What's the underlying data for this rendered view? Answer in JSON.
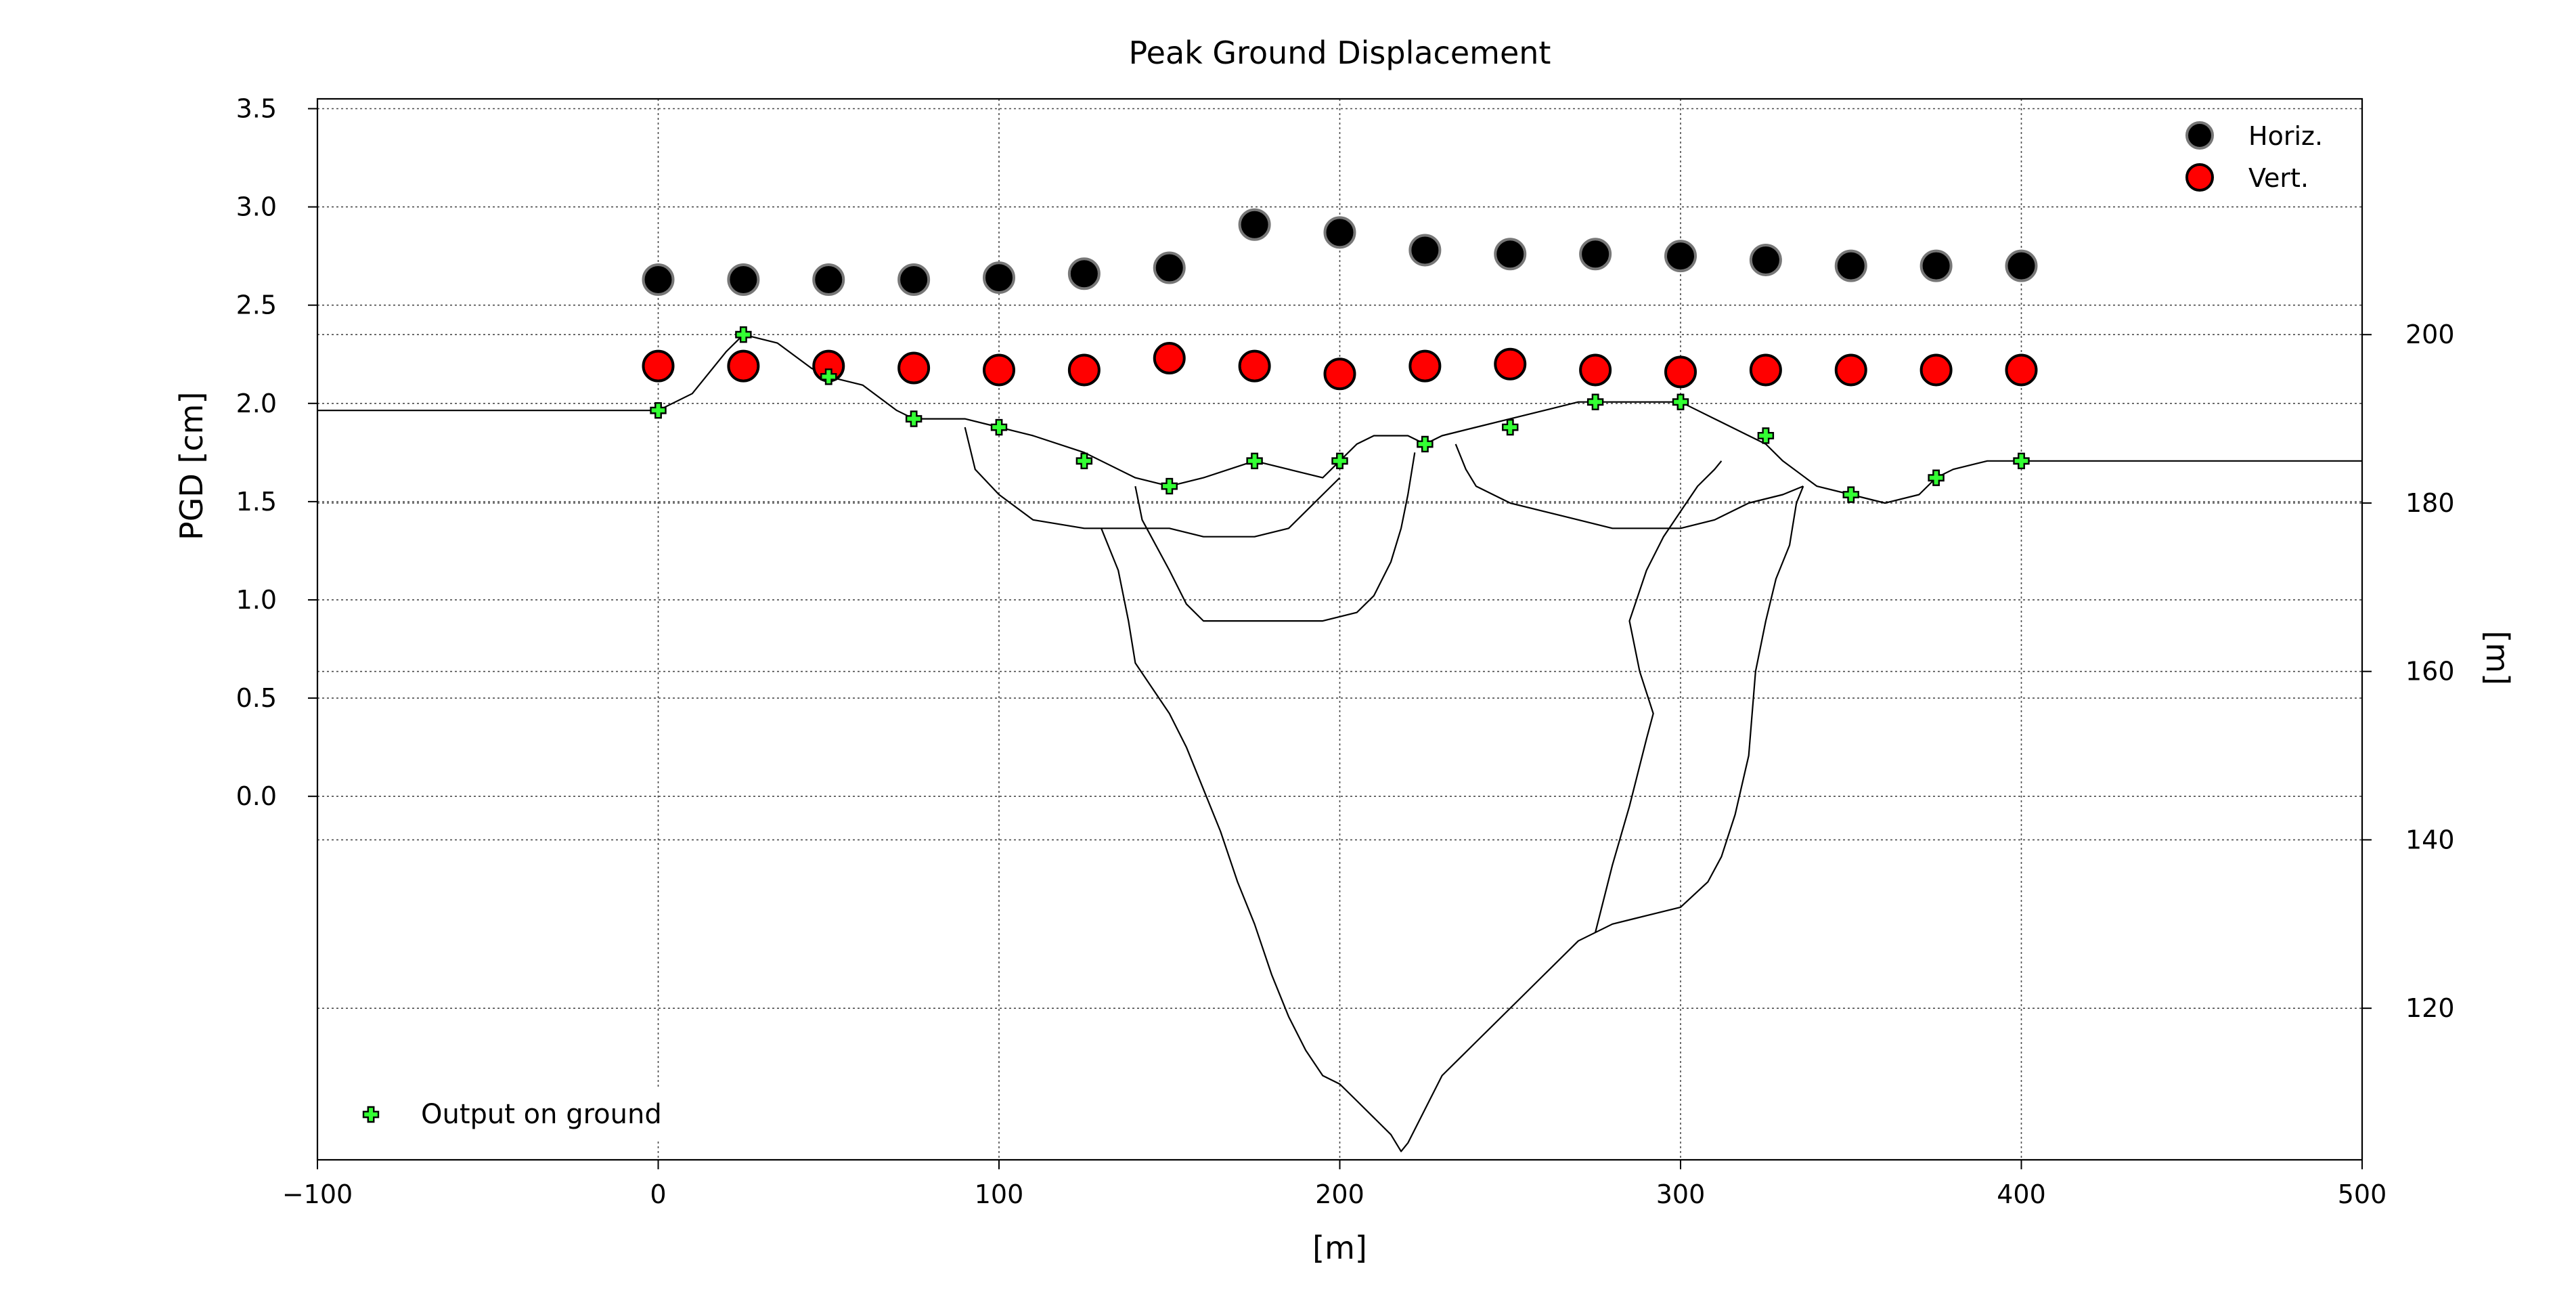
{
  "chart_data": [
    {
      "type": "scatter",
      "title": "Peak Ground Displacement",
      "xlabel": "[m]",
      "ylabel": "PGD [cm]",
      "xlim": [
        -100,
        500
      ],
      "ylim": [
        -1.85,
        3.55
      ],
      "x_ticks": [
        -100,
        0,
        100,
        200,
        300,
        400,
        500
      ],
      "x_tick_labels": [
        "−100",
        "0",
        "100",
        "200",
        "300",
        "400",
        "500"
      ],
      "y_ticks": [
        0.0,
        0.5,
        1.0,
        1.5,
        2.0,
        2.5,
        3.0,
        3.5
      ],
      "y_tick_labels": [
        "0.0",
        "0.5",
        "1.0",
        "1.5",
        "2.0",
        "2.5",
        "3.0",
        "3.5"
      ],
      "grid": true,
      "legend_position": "top-right",
      "series": [
        {
          "name": "Horiz.",
          "color": "#000000",
          "edge_color": "#777777",
          "x": [
            0,
            25,
            50,
            75,
            100,
            125,
            150,
            175,
            200,
            225,
            250,
            275,
            300,
            325,
            350,
            375,
            400
          ],
          "y": [
            2.63,
            2.63,
            2.63,
            2.63,
            2.64,
            2.66,
            2.69,
            2.91,
            2.87,
            2.78,
            2.76,
            2.76,
            2.75,
            2.73,
            2.7,
            2.7,
            2.7
          ]
        },
        {
          "name": "Vert.",
          "color": "#ff0000",
          "edge_color": "#000000",
          "x": [
            0,
            25,
            50,
            75,
            100,
            125,
            150,
            175,
            200,
            225,
            250,
            275,
            300,
            325,
            350,
            375,
            400
          ],
          "y": [
            2.19,
            2.19,
            2.19,
            2.18,
            2.17,
            2.17,
            2.23,
            2.19,
            2.15,
            2.19,
            2.2,
            2.17,
            2.16,
            2.17,
            2.17,
            2.17,
            2.17
          ]
        }
      ]
    },
    {
      "type": "line",
      "ylabel": "[m]",
      "y_axis_side": "right",
      "ylim": [
        102,
        228
      ],
      "y_ticks": [
        120,
        140,
        160,
        180,
        200
      ],
      "y_tick_labels": [
        "120",
        "140",
        "160",
        "180",
        "200"
      ],
      "legend_position": "bottom-left",
      "series": [
        {
          "name": "Output on ground",
          "type": "scatter",
          "marker": "plus",
          "color": "#33ff33",
          "x": [
            0,
            25,
            50,
            75,
            100,
            125,
            150,
            175,
            200,
            225,
            250,
            275,
            300,
            325,
            350,
            375,
            400
          ],
          "y": [
            191,
            200,
            195,
            190,
            189,
            185,
            182,
            185,
            185,
            187,
            189,
            192,
            192,
            188,
            181,
            183,
            185
          ]
        }
      ],
      "outlines": [
        {
          "name": "ground surface",
          "x": [
            -100,
            -50,
            -10,
            0,
            10,
            20,
            25,
            35,
            45,
            50,
            60,
            70,
            75,
            80,
            90,
            100,
            110,
            125,
            135,
            140,
            150,
            160,
            175,
            185,
            195,
            200,
            205,
            210,
            220,
            225,
            230,
            240,
            250,
            260,
            270,
            280,
            290,
            300,
            305,
            310,
            320,
            325,
            330,
            340,
            350,
            360,
            370,
            375,
            380,
            390,
            400,
            450,
            500
          ],
          "y": [
            191,
            191,
            191,
            191,
            193,
            198,
            200,
            199,
            196,
            195,
            194,
            191,
            190,
            190,
            190,
            189,
            188,
            186,
            184,
            183,
            182,
            183,
            185,
            184,
            183,
            185,
            187,
            188,
            188,
            187,
            188,
            189,
            190,
            191,
            192,
            192,
            192,
            192,
            191,
            190,
            188,
            187,
            185,
            182,
            181,
            180,
            181,
            183,
            184,
            185,
            185,
            185,
            185
          ]
        },
        {
          "name": "upper layer boundary (west)",
          "x": [
            90,
            93,
            100,
            110,
            125,
            140,
            150,
            160,
            175,
            185,
            195,
            200
          ],
          "y": [
            189,
            184,
            181,
            178,
            177,
            177,
            177,
            176,
            176,
            177,
            181,
            183
          ]
        },
        {
          "name": "upper layer boundary (middle)",
          "x": [
            140,
            142,
            150,
            155,
            160,
            170,
            180,
            195,
            205,
            210,
            215,
            218,
            220,
            222
          ],
          "y": [
            182,
            178,
            172,
            168,
            166,
            166,
            166,
            166,
            167,
            169,
            173,
            177,
            181,
            186
          ]
        },
        {
          "name": "upper layer boundary (east)",
          "x": [
            234,
            237,
            240,
            250,
            260,
            270,
            280,
            290,
            300,
            310,
            320,
            330,
            336
          ],
          "y": [
            187,
            184,
            182,
            180,
            179,
            178,
            177,
            177,
            177,
            178,
            180,
            181,
            182
          ]
        },
        {
          "name": "basin bottom",
          "x": [
            130,
            135,
            138,
            140,
            145,
            150,
            155,
            160,
            165,
            170,
            175,
            180,
            185,
            190,
            195,
            200,
            205,
            210,
            215,
            218,
            220,
            225,
            230,
            240,
            250,
            260,
            270,
            280,
            290,
            300,
            308,
            312,
            316,
            320,
            322,
            325,
            328,
            332,
            334,
            336
          ],
          "y": [
            177,
            172,
            166,
            161,
            158,
            155,
            151,
            146,
            141,
            135,
            130,
            124,
            119,
            115,
            112,
            111,
            109,
            107,
            105,
            103,
            104,
            108,
            112,
            116,
            120,
            124,
            128,
            130,
            131,
            132,
            135,
            138,
            143,
            150,
            160,
            166,
            171,
            175,
            180,
            182
          ]
        },
        {
          "name": "inner basin boundary",
          "x": [
            275,
            280,
            285,
            290,
            292,
            288,
            285,
            290,
            295,
            300,
            305,
            310,
            312
          ],
          "y": [
            129,
            137,
            144,
            152,
            155,
            160,
            166,
            172,
            176,
            179,
            182,
            184,
            185
          ]
        }
      ]
    }
  ]
}
